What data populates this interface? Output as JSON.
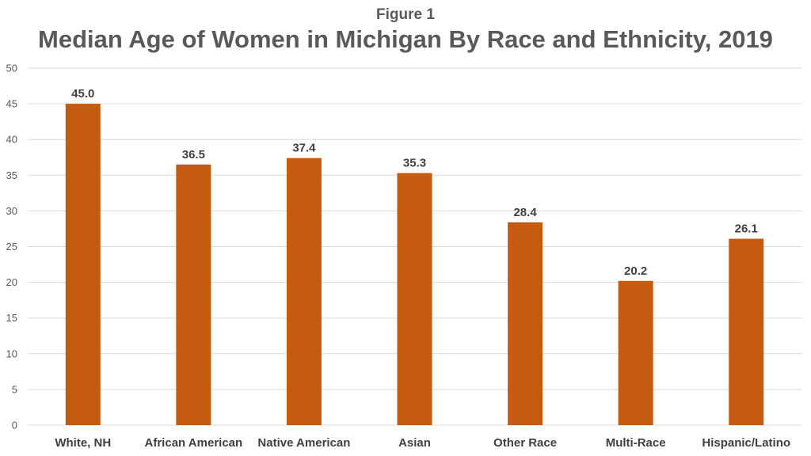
{
  "figure_label": "Figure 1",
  "chart_data": {
    "type": "bar",
    "title": "Median Age of Women in Michigan By Race and Ethnicity, 2019",
    "xlabel": "",
    "ylabel": "",
    "categories": [
      "White, NH",
      "African American",
      "Native American",
      "Asian",
      "Other Race",
      "Multi-Race",
      "Hispanic/Latino"
    ],
    "values": [
      45.0,
      36.5,
      37.4,
      35.3,
      28.4,
      20.2,
      26.1
    ],
    "value_labels": [
      "45.0",
      "36.5",
      "37.4",
      "35.3",
      "28.4",
      "20.2",
      "26.1"
    ],
    "ylim": [
      0,
      50
    ],
    "yticks": [
      0,
      5,
      10,
      15,
      20,
      25,
      30,
      35,
      40,
      45,
      50
    ],
    "grid": true,
    "legend": "none",
    "bar_color": "#C55A11",
    "grid_color": "#D9D9D9"
  }
}
